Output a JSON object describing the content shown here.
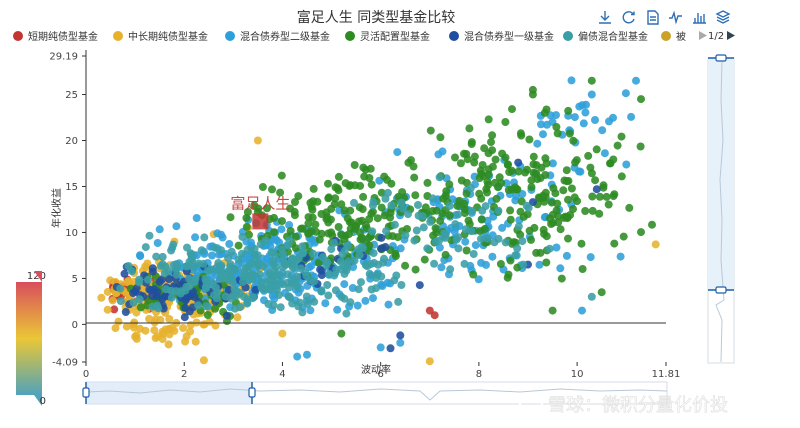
{
  "title": "富足人生 同类型基金比较",
  "toolbar": {
    "icons": [
      "download-icon",
      "refresh-icon",
      "data-view-icon",
      "line-chart-icon",
      "bar-chart-icon",
      "stack-icon"
    ]
  },
  "legend": {
    "items": [
      {
        "name": "短期纯债型基金",
        "color": "#c23531"
      },
      {
        "name": "中长期纯债型基金",
        "color": "#e6b22e"
      },
      {
        "name": "混合债券型二级基金",
        "color": "#2f9fd9"
      },
      {
        "name": "灵活配置型基金",
        "color": "#2e8b22"
      },
      {
        "name": "混合债券型一级基金",
        "color": "#1f4e9e"
      },
      {
        "name": "偏债混合型基金",
        "color": "#3a9ea5"
      },
      {
        "name": "被",
        "color": "#c9a227"
      }
    ],
    "page": "1/2"
  },
  "visual_map": {
    "max": "120",
    "min": "0",
    "colors": [
      "#d94e5d",
      "#eac736",
      "#50a3ba"
    ]
  },
  "highlight": {
    "label": "富足人生",
    "x": 3.55,
    "y": 11.2,
    "color": "#c23531"
  },
  "watermark": "雪球：微积分量化价投",
  "chart_data": {
    "type": "scatter",
    "title": "富足人生 同类型基金比较",
    "xlabel": "波动率",
    "ylabel": "年化收益",
    "xlim": [
      0,
      11.81
    ],
    "ylim": [
      -4.09,
      29.19
    ],
    "xticks": [
      "0",
      "2",
      "4",
      "6",
      "8",
      "10",
      "11.81"
    ],
    "yticks": [
      "-4.09",
      "0",
      "5",
      "10",
      "15",
      "20",
      "25",
      "29.19"
    ],
    "grid": false,
    "legend_position": "top",
    "series": [
      {
        "name": "短期纯债型基金",
        "clusters": [
          {
            "n": 40,
            "x": [
              0.2,
              1.8
            ],
            "y": [
              1.0,
              6.0
            ]
          },
          {
            "n": 10,
            "x": [
              2.0,
              3.2
            ],
            "y": [
              2.0,
              6.5
            ]
          }
        ],
        "points": [
          [
            7.0,
            1.5
          ],
          [
            7.1,
            1.0
          ],
          [
            1.6,
            3.6
          ],
          [
            0.6,
            4.5
          ]
        ]
      },
      {
        "name": "中长期纯债型基金",
        "clusters": [
          {
            "n": 260,
            "x": [
              0.2,
              3.6
            ],
            "y": [
              0.5,
              7.0
            ]
          },
          {
            "n": 40,
            "x": [
              0.3,
              2.8
            ],
            "y": [
              -2.5,
              1.0
            ]
          }
        ],
        "points": [
          [
            3.5,
            20.0
          ],
          [
            1.8,
            9.0
          ],
          [
            2.6,
            9.8
          ],
          [
            3.3,
            10.5
          ],
          [
            11.6,
            8.7
          ],
          [
            7.0,
            -4.0
          ],
          [
            2.4,
            -3.9
          ],
          [
            4.0,
            -1.0
          ],
          [
            0.6,
            -0.4
          ]
        ]
      },
      {
        "name": "混合债券型二级基金",
        "clusters": [
          {
            "n": 260,
            "x": [
              1.0,
              6.5
            ],
            "y": [
              1.0,
              12.0
            ]
          },
          {
            "n": 120,
            "x": [
              5.0,
              11.0
            ],
            "y": [
              4.0,
              20.0
            ]
          },
          {
            "n": 30,
            "x": [
              8.5,
              11.5
            ],
            "y": [
              15.0,
              28.0
            ]
          }
        ],
        "points": [
          [
            4.5,
            -3.3
          ],
          [
            4.3,
            -3.5
          ],
          [
            6.4,
            -2.0
          ],
          [
            6.0,
            -2.5
          ],
          [
            10.3,
            25.0
          ],
          [
            11.2,
            26.5
          ],
          [
            10.1,
            1.5
          ]
        ]
      },
      {
        "name": "灵活配置型基金",
        "clusters": [
          {
            "n": 200,
            "x": [
              2.8,
              8.0
            ],
            "y": [
              5.0,
              18.0
            ]
          },
          {
            "n": 200,
            "x": [
              6.5,
              11.7
            ],
            "y": [
              4.0,
              24.0
            ]
          },
          {
            "n": 50,
            "x": [
              0.5,
              3.5
            ],
            "y": [
              0.0,
              6.0
            ]
          }
        ],
        "points": [
          [
            9.1,
            25.0
          ],
          [
            9.1,
            25.5
          ],
          [
            8.2,
            22.3
          ],
          [
            10.3,
            26.5
          ],
          [
            11.3,
            24.5
          ],
          [
            10.5,
            3.5
          ],
          [
            5.2,
            -1.0
          ],
          [
            9.5,
            1.5
          ]
        ]
      },
      {
        "name": "混合债券型一级基金",
        "clusters": [
          {
            "n": 70,
            "x": [
              0.3,
              3.5
            ],
            "y": [
              0.5,
              7.0
            ]
          },
          {
            "n": 20,
            "x": [
              3.0,
              7.0
            ],
            "y": [
              3.0,
              10.0
            ]
          }
        ],
        "points": [
          [
            6.4,
            -1.2
          ],
          [
            6.2,
            -2.6
          ],
          [
            10.4,
            14.7
          ],
          [
            8.8,
            17.6
          ],
          [
            9.1,
            13.3
          ],
          [
            9.0,
            6.5
          ]
        ]
      },
      {
        "name": "偏债混合型基金",
        "clusters": [
          {
            "n": 250,
            "x": [
              0.4,
              6.5
            ],
            "y": [
              1.0,
              10.0
            ]
          },
          {
            "n": 60,
            "x": [
              5.0,
              9.5
            ],
            "y": [
              5.0,
              16.0
            ]
          }
        ],
        "points": [
          [
            10.3,
            3.0
          ],
          [
            5.6,
            4.6
          ],
          [
            7.2,
            16.0
          ]
        ]
      }
    ]
  }
}
